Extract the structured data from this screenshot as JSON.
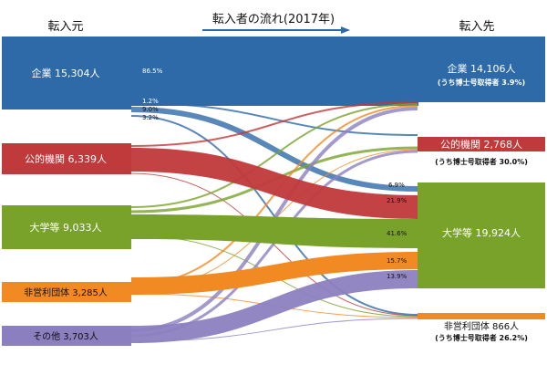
{
  "header": {
    "source_title": "転入元",
    "flow_title": "転入者の流れ(2017年)",
    "target_title": "転入先"
  },
  "colors": {
    "company": "#2e6aa7",
    "public": "#c0393b",
    "university": "#79a22b",
    "nonprofit": "#f18a22",
    "other": "#8c7fc0"
  },
  "sources": [
    {
      "key": "company",
      "label": "企業 15,304人"
    },
    {
      "key": "public",
      "label": "公的機関 6,339人"
    },
    {
      "key": "university",
      "label": "大学等 9,033人"
    },
    {
      "key": "nonprofit",
      "label": "非営利団体 3,285人"
    },
    {
      "key": "other",
      "label": "その他 3,703人"
    }
  ],
  "targets": [
    {
      "key": "company",
      "label": "企業 14,106人",
      "sub": "(うち博士号取得者  3.9%)"
    },
    {
      "key": "public",
      "label": "公的機関 2,768人",
      "sub": "(うち博士号取得者  30.0%)"
    },
    {
      "key": "university",
      "label": "大学等 19,924人",
      "sub": ""
    },
    {
      "key": "nonprofit",
      "label": "非営利団体 866人",
      "sub": "(うち博士号取得者  26.2%)"
    }
  ],
  "flow_labels": {
    "company_to_company": "86.5%",
    "company_to_public": "1.2%",
    "company_to_university": "9.0%",
    "company_to_nonprofit": "3.2%",
    "university_share_company": "6.9%",
    "university_share_public": "21.9%",
    "university_share_university": "41.6%",
    "university_share_nonprofit": "15.7%",
    "university_share_other": "13.9%"
  }
}
